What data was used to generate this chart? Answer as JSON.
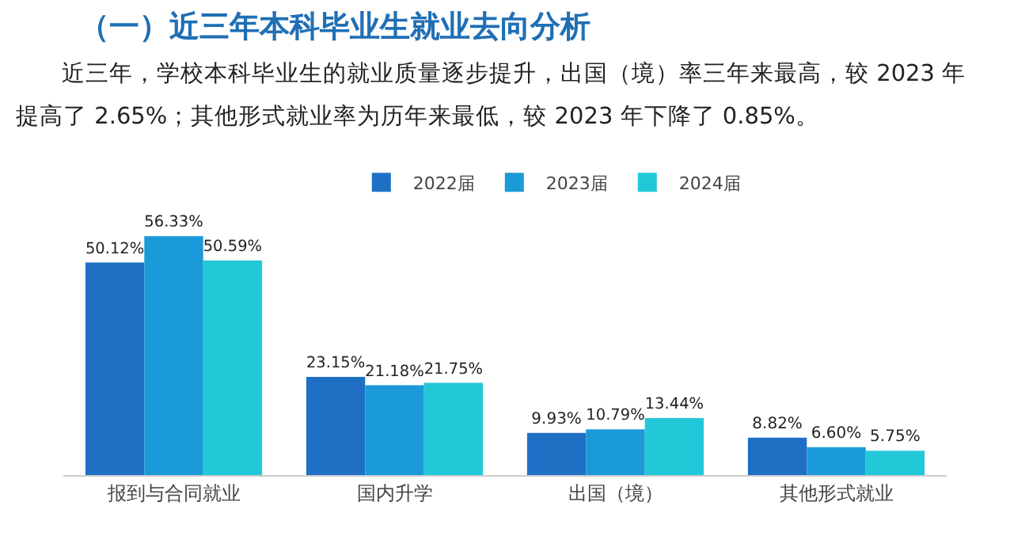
{
  "chart_data": {
    "type": "bar",
    "title": "（一）近三年本科毕业生就业去向分析",
    "subtitle": "近三年，学校本科毕业生的就业质量逐步提升，出国（境）率三年来最高，较 2023 年提高了 2.65%；其他形式就业率为历年来最低，较 2023 年下降了 0.85%。",
    "categories": [
      "报到与合同就业",
      "国内升学",
      "出国（境）",
      "其他形式就业"
    ],
    "series": [
      {
        "name": "2022届",
        "color": "#1f6fc5",
        "values": [
          50.12,
          23.15,
          9.93,
          8.82
        ],
        "value_labels": [
          "50.12%",
          "23.15%",
          "9.93%",
          "8.82%"
        ]
      },
      {
        "name": "2023届",
        "color": "#1a9ad8",
        "values": [
          56.33,
          21.18,
          10.79,
          6.6
        ],
        "value_labels": [
          "56.33%",
          "21.18%",
          "10.79%",
          "6.60%"
        ]
      },
      {
        "name": "2024届",
        "color": "#22c8d8",
        "values": [
          50.59,
          21.75,
          13.44,
          5.75
        ],
        "value_labels": [
          "50.59%",
          "21.75%",
          "13.44%",
          "5.75%"
        ]
      }
    ],
    "legend": "top"
  }
}
